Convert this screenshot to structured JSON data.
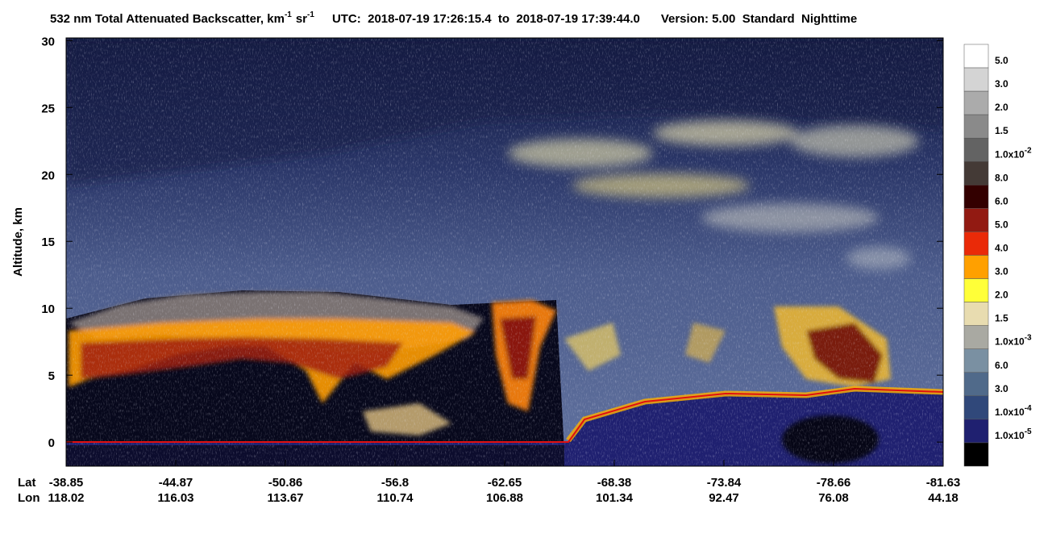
{
  "chart_data": {
    "type": "heatmap",
    "title": {
      "main": "532 nm Total Attenuated Backscatter, km",
      "unit_exp": "-1",
      "unit2": "sr",
      "unit2_exp": "-1",
      "utc": "UTC:  2018-07-19 17:26:15.4  to  2018-07-19 17:39:44.0",
      "version": "Version: 5.00  Standard  Nighttime"
    },
    "y_label": "Altitude, km",
    "ylim": [
      -1.8,
      30.2
    ],
    "yticks": [
      0,
      5,
      10,
      15,
      20,
      25,
      30
    ],
    "x_axis": {
      "lat_label": "Lat",
      "lon_label": "Lon",
      "lat": [
        -38.85,
        -44.87,
        -50.86,
        -56.8,
        -62.65,
        -68.38,
        -73.84,
        -78.66,
        -81.63
      ],
      "lon": [
        118.02,
        116.03,
        113.67,
        110.74,
        106.88,
        101.34,
        92.47,
        76.08,
        44.18
      ]
    },
    "colorbar": {
      "colors": [
        "#ffffff",
        "#d4d4d4",
        "#ababab",
        "#8a8a8a",
        "#636363",
        "#443a36",
        "#330000",
        "#921a12",
        "#ea2a08",
        "#ffa000",
        "#ffff38",
        "#e8dcb0",
        "#a9a9a2",
        "#7a90a2",
        "#506a8a",
        "#30487a",
        "#1f2070",
        "#000000"
      ],
      "labels": [
        {
          "mantissa": "5.0"
        },
        {
          "mantissa": "3.0"
        },
        {
          "mantissa": "2.0"
        },
        {
          "mantissa": "1.5"
        },
        {
          "mantissa": "1.0x10",
          "exp": "-2"
        },
        {
          "mantissa": "8.0"
        },
        {
          "mantissa": "6.0"
        },
        {
          "mantissa": "5.0"
        },
        {
          "mantissa": "4.0"
        },
        {
          "mantissa": "3.0"
        },
        {
          "mantissa": "2.0"
        },
        {
          "mantissa": "1.5"
        },
        {
          "mantissa": "1.0x10",
          "exp": "-3"
        },
        {
          "mantissa": "6.0"
        },
        {
          "mantissa": "3.0"
        },
        {
          "mantissa": "1.0x10",
          "exp": "-4"
        },
        {
          "mantissa": "1.0x10",
          "exp": "-5"
        }
      ]
    }
  }
}
